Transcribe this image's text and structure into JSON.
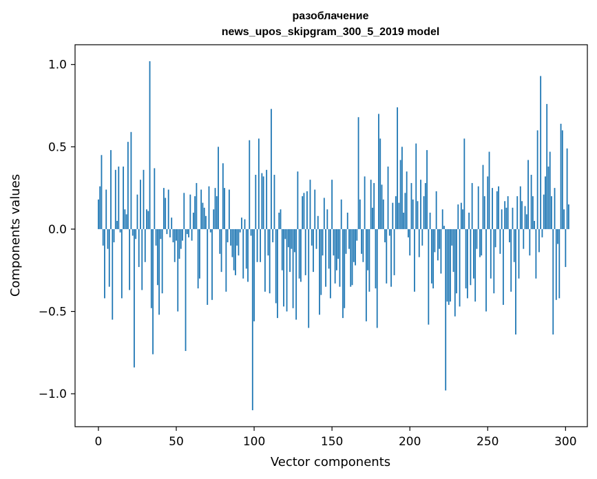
{
  "chart_data": {
    "type": "bar",
    "title": "разоблачение",
    "subtitle": "news_upos_skipgram_300_5_2019 model",
    "xlabel": "Vector components",
    "ylabel": "Components values",
    "xlim": [
      -15,
      314
    ],
    "ylim": [
      -1.2,
      1.12
    ],
    "xticks": [
      0,
      50,
      100,
      150,
      200,
      250,
      300
    ],
    "yticks": [
      -1.0,
      -0.5,
      0.0,
      0.5,
      1.0
    ],
    "xtick_labels": [
      "0",
      "50",
      "100",
      "150",
      "200",
      "250",
      "300"
    ],
    "ytick_labels": [
      "−1.0",
      "−0.5",
      "0.0",
      "0.5",
      "1.0"
    ],
    "bar_color": "#1f77b4",
    "values": [
      0.18,
      0.26,
      0.45,
      -0.1,
      -0.42,
      0.24,
      -0.12,
      -0.35,
      0.48,
      -0.55,
      -0.08,
      0.36,
      0.05,
      0.38,
      -0.02,
      -0.42,
      0.38,
      0.12,
      0.09,
      0.53,
      -0.37,
      0.59,
      -0.04,
      -0.84,
      -0.06,
      0.21,
      -0.23,
      0.3,
      -0.37,
      0.36,
      -0.2,
      0.12,
      0.11,
      1.02,
      -0.48,
      -0.76,
      0.37,
      -0.1,
      -0.34,
      -0.52,
      -0.06,
      -0.39,
      0.25,
      0.19,
      -0.03,
      0.24,
      -0.05,
      0.07,
      -0.08,
      -0.2,
      -0.07,
      -0.5,
      -0.18,
      -0.12,
      -0.07,
      0.22,
      -0.74,
      -0.03,
      -0.05,
      0.21,
      -0.07,
      0.1,
      0.2,
      0.28,
      -0.36,
      -0.3,
      0.24,
      0.16,
      0.13,
      0.08,
      -0.46,
      0.26,
      -0.02,
      -0.43,
      0.12,
      0.25,
      0.2,
      0.5,
      -0.15,
      -0.26,
      0.4,
      0.25,
      -0.38,
      -0.08,
      0.24,
      -0.1,
      -0.17,
      -0.25,
      -0.28,
      -0.1,
      -0.16,
      -0.02,
      0.07,
      -0.3,
      0.06,
      -0.24,
      -0.32,
      0.54,
      -0.04,
      -1.1,
      -0.56,
      0.33,
      -0.2,
      0.55,
      -0.2,
      0.34,
      0.32,
      -0.38,
      0.36,
      -0.16,
      -0.39,
      0.73,
      -0.08,
      0.33,
      -0.45,
      -0.54,
      0.1,
      0.12,
      -0.25,
      -0.47,
      -0.06,
      -0.5,
      -0.11,
      -0.26,
      -0.12,
      -0.48,
      -0.14,
      -0.55,
      0.35,
      -0.3,
      -0.32,
      0.2,
      0.22,
      -0.28,
      0.23,
      -0.6,
      0.3,
      -0.1,
      -0.26,
      0.24,
      -0.12,
      0.08,
      -0.52,
      -0.4,
      -0.16,
      0.19,
      -0.35,
      0.12,
      -0.24,
      -0.42,
      0.3,
      -0.16,
      -0.33,
      -0.25,
      -0.18,
      -0.35,
      0.18,
      -0.54,
      -0.48,
      -0.15,
      0.1,
      -0.12,
      -0.35,
      -0.34,
      -0.2,
      -0.22,
      -0.07,
      0.68,
      0.18,
      -0.15,
      -0.2,
      0.32,
      -0.56,
      -0.25,
      -0.38,
      0.3,
      0.13,
      0.28,
      -0.36,
      -0.6,
      0.7,
      0.55,
      0.27,
      0.18,
      -0.08,
      -0.33,
      0.38,
      -0.04,
      -0.35,
      0.16,
      -0.28,
      0.2,
      0.74,
      0.16,
      0.42,
      0.5,
      0.1,
      0.22,
      0.35,
      -0.05,
      -0.16,
      0.28,
      0.18,
      -0.38,
      0.52,
      0.17,
      -0.17,
      0.3,
      -0.1,
      0.2,
      0.28,
      0.48,
      -0.58,
      0.1,
      -0.33,
      -0.36,
      -0.14,
      0.23,
      -0.19,
      -0.12,
      -0.27,
      0.12,
      0.02,
      -0.98,
      -0.44,
      -0.46,
      -0.44,
      -0.1,
      -0.26,
      -0.53,
      -0.39,
      0.15,
      -0.47,
      0.16,
      0.12,
      0.55,
      -0.36,
      -0.42,
      0.1,
      -0.34,
      0.28,
      -0.3,
      -0.44,
      -0.12,
      0.26,
      -0.17,
      -0.16,
      0.39,
      0.2,
      -0.5,
      0.32,
      0.47,
      -0.3,
      0.25,
      -0.39,
      -0.11,
      0.23,
      0.26,
      -0.15,
      0.12,
      -0.46,
      0.17,
      0.13,
      0.2,
      -0.08,
      -0.38,
      0.13,
      -0.2,
      -0.64,
      0.2,
      -0.3,
      0.26,
      0.17,
      -0.12,
      0.14,
      0.09,
      0.42,
      -0.16,
      0.33,
      0.2,
      0.05,
      -0.3,
      0.6,
      -0.14,
      0.93,
      -0.05,
      0.21,
      0.32,
      0.76,
      0.38,
      0.47,
      0.2,
      -0.64,
      0.25,
      -0.43,
      -0.09,
      -0.42,
      0.64,
      0.6,
      0.12,
      -0.23,
      0.49,
      0.15
    ]
  }
}
